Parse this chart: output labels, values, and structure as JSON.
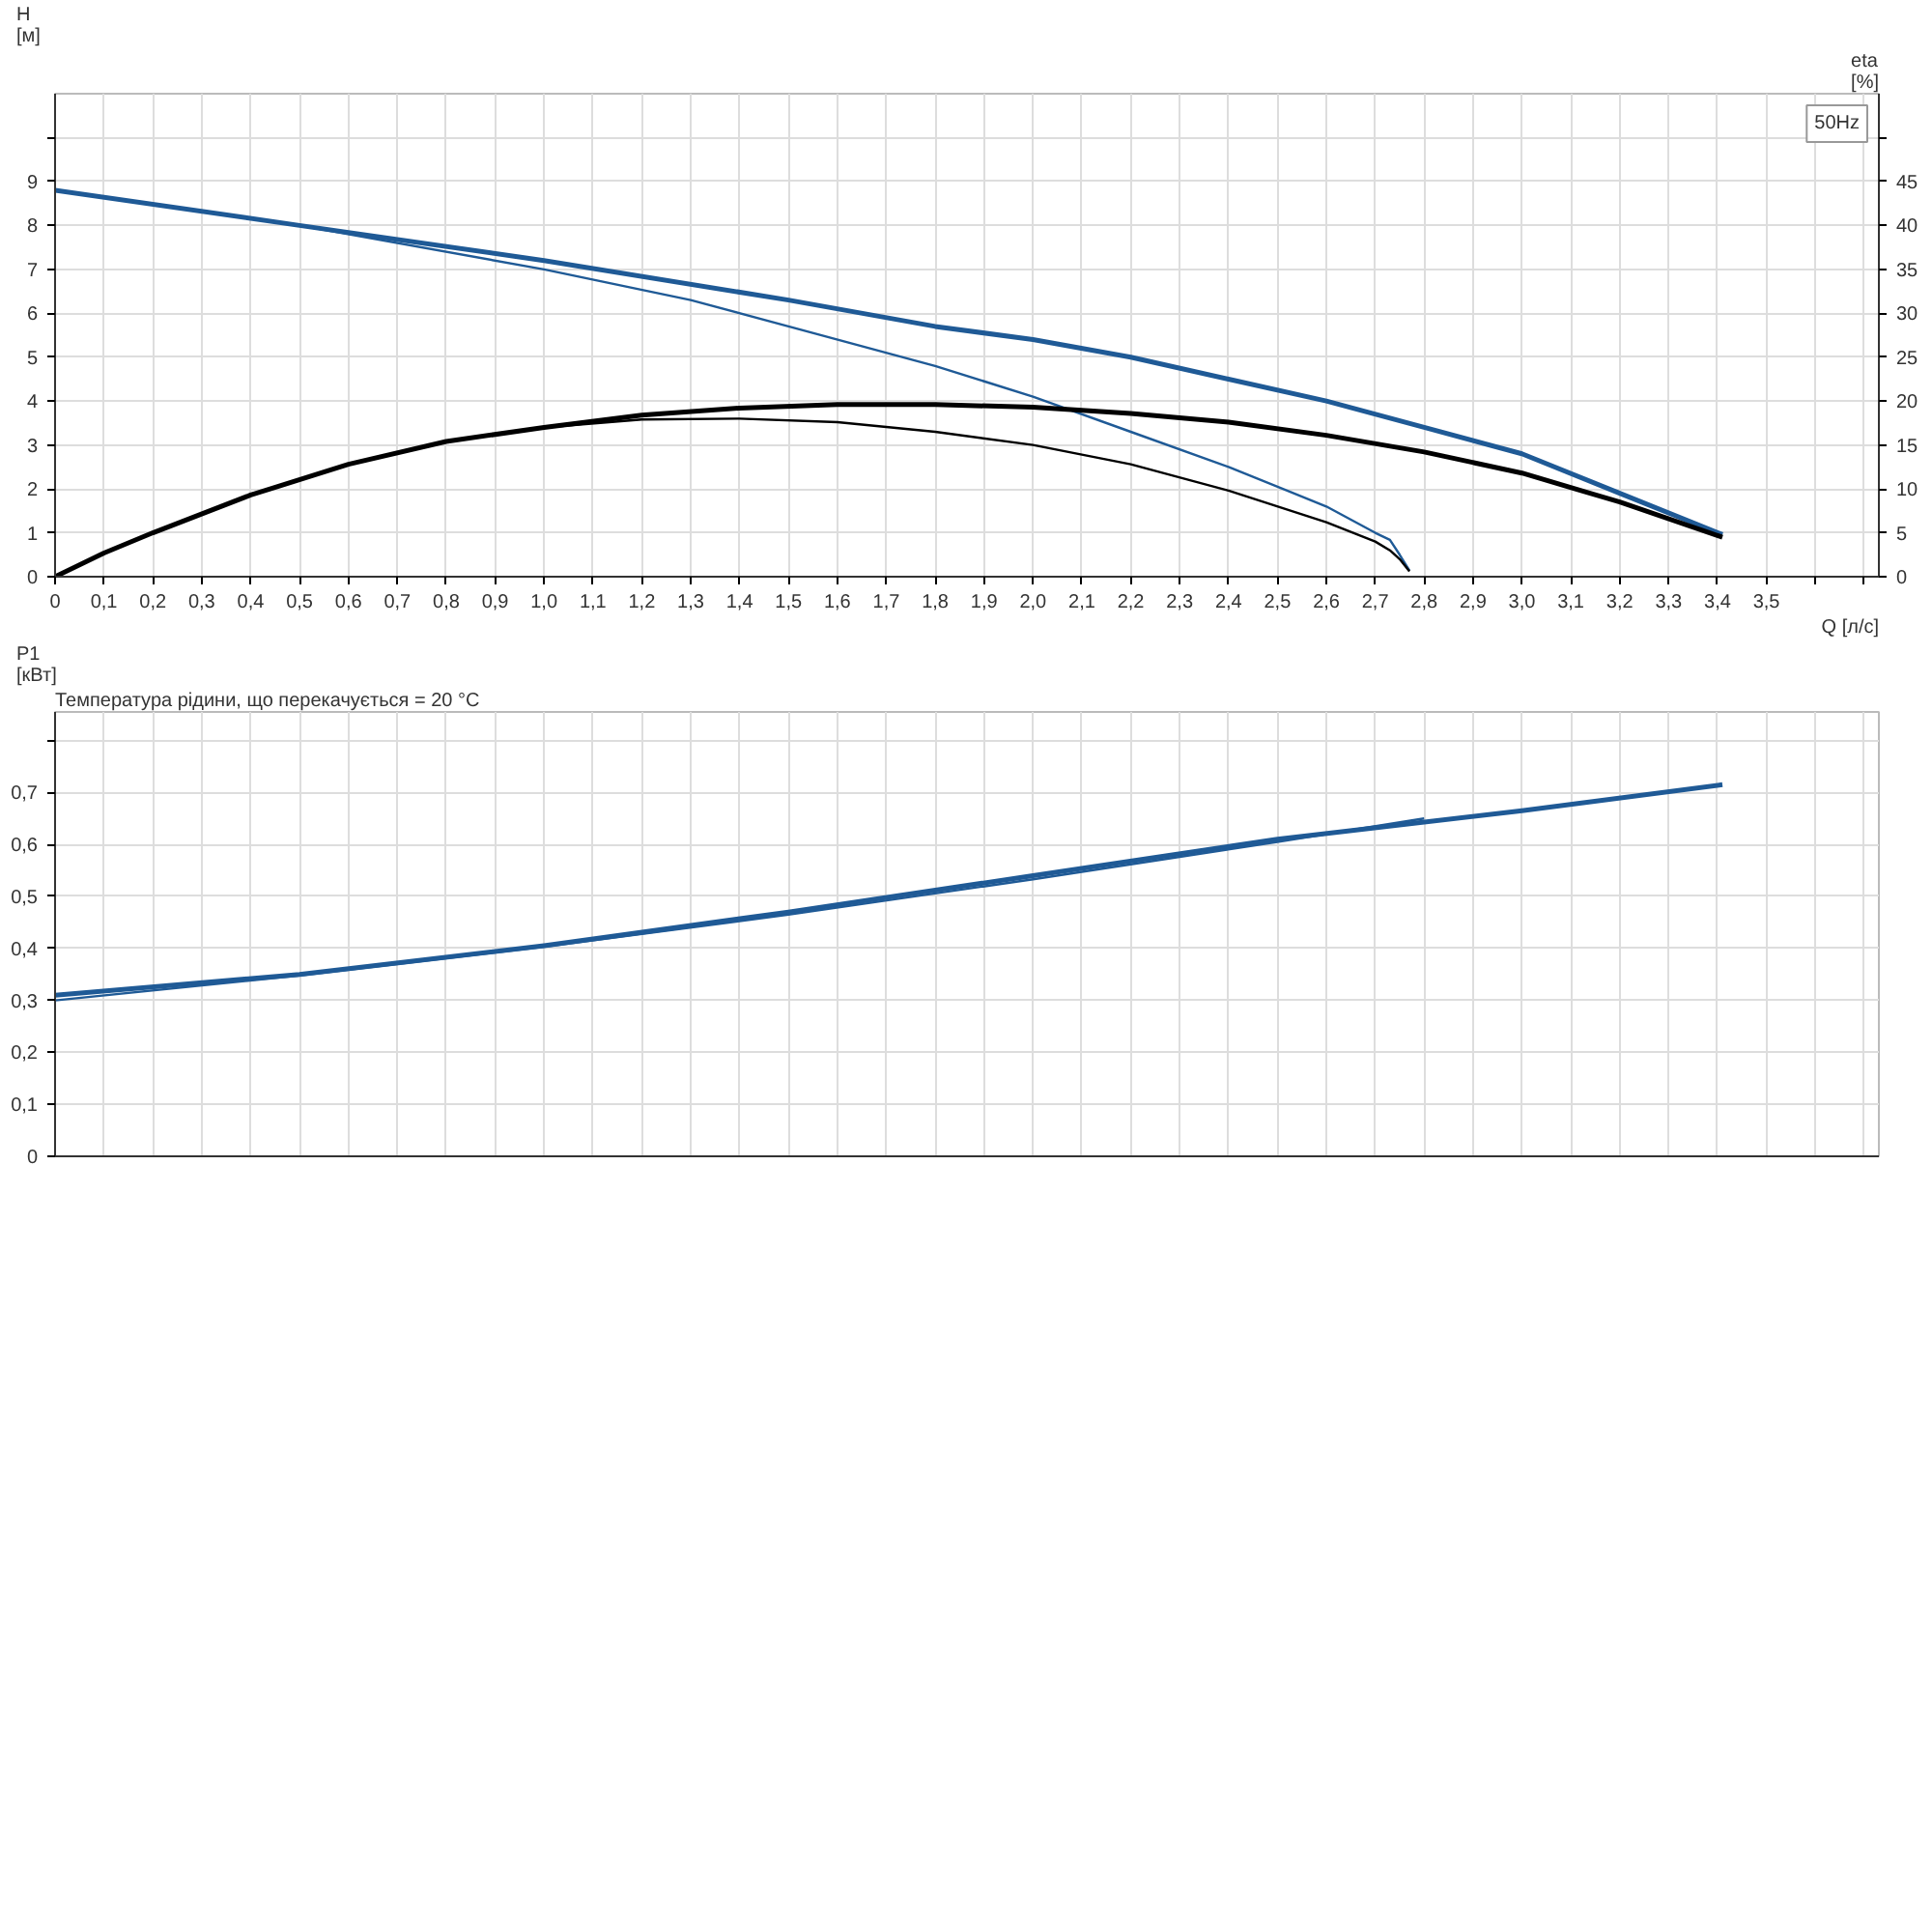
{
  "chart_data": [
    {
      "type": "line",
      "xlabel": "Q [л/с]",
      "ylabel": "H\n[м]",
      "y2label": "eta\n[%]",
      "annotations": [
        "50Hz"
      ],
      "xlim": [
        0,
        3.73
      ],
      "xticks": [
        0,
        {
          "value": 0.1,
          "label": "0,1"
        },
        {
          "value": 0.2,
          "label": "0,2"
        },
        {
          "value": 0.3,
          "label": "0,3"
        },
        {
          "value": 0.4,
          "label": "0,4"
        },
        {
          "value": 0.5,
          "label": "0,5"
        },
        {
          "value": 0.6,
          "label": "0,6"
        },
        {
          "value": 0.7,
          "label": "0,7"
        },
        {
          "value": 0.8,
          "label": "0,8"
        },
        {
          "value": 0.9,
          "label": "0,9"
        },
        {
          "value": 1.0,
          "label": "1,0"
        },
        {
          "value": 1.1,
          "label": "1,1"
        },
        {
          "value": 1.2,
          "label": "1,2"
        },
        {
          "value": 1.3,
          "label": "1,3"
        },
        {
          "value": 1.4,
          "label": "1,4"
        },
        {
          "value": 1.5,
          "label": "1,5"
        },
        {
          "value": 1.6,
          "label": "1,6"
        },
        {
          "value": 1.7,
          "label": "1,7"
        },
        {
          "value": 1.8,
          "label": "1,8"
        },
        {
          "value": 1.9,
          "label": "1,9"
        },
        {
          "value": 2.0,
          "label": "2,0"
        },
        {
          "value": 2.1,
          "label": "2,1"
        },
        {
          "value": 2.2,
          "label": "2,2"
        },
        {
          "value": 2.3,
          "label": "2,3"
        },
        {
          "value": 2.4,
          "label": "2,4"
        },
        {
          "value": 2.5,
          "label": "2,5"
        },
        {
          "value": 2.6,
          "label": "2,6"
        },
        {
          "value": 2.7,
          "label": "2,7"
        },
        {
          "value": 2.8,
          "label": "2,8"
        },
        {
          "value": 2.9,
          "label": "2,9"
        },
        {
          "value": 3.0,
          "label": "3,0"
        },
        {
          "value": 3.1,
          "label": "3,1"
        },
        {
          "value": 3.2,
          "label": "3,2"
        },
        {
          "value": 3.3,
          "label": "3,3"
        },
        {
          "value": 3.4,
          "label": "3,4"
        },
        {
          "value": 3.5,
          "label": "3,5"
        },
        {
          "value": 3.6,
          "label": null
        },
        {
          "value": 3.7,
          "label": null
        }
      ],
      "ylim": [
        0,
        11
      ],
      "yticks": [
        0,
        1,
        2,
        3,
        4,
        5,
        6,
        7,
        8,
        9,
        {
          "value": 10,
          "label": null
        }
      ],
      "y2lim": [
        0,
        55
      ],
      "y2ticks": [
        0,
        5,
        10,
        15,
        20,
        25,
        30,
        35,
        40,
        45,
        {
          "value": 50,
          "label": null
        }
      ],
      "grid": true,
      "series": [
        {
          "color": "#1f5a96",
          "x": [
            0,
            0.5,
            1.0,
            1.5,
            1.8,
            2.0,
            2.2,
            2.4,
            2.6,
            2.8,
            3.0,
            3.2,
            3.41
          ],
          "values": [
            8.8,
            8.0,
            7.2,
            6.3,
            5.7,
            5.4,
            5.0,
            4.5,
            4.0,
            3.4,
            2.8,
            1.9,
            0.96
          ]
        },
        {
          "color": "#1f5a96",
          "x": [
            0,
            0.5,
            1.0,
            1.3,
            1.5,
            1.8,
            2.0,
            2.2,
            2.4,
            2.6,
            2.7,
            2.73,
            2.75,
            2.77
          ],
          "values": [
            8.8,
            8.0,
            7.0,
            6.3,
            5.7,
            4.8,
            4.1,
            3.3,
            2.5,
            1.6,
            1.0,
            0.84,
            0.5,
            0.14
          ]
        },
        {
          "color": "#000000",
          "axis": "y2",
          "x": [
            0,
            0.1,
            0.2,
            0.4,
            0.6,
            0.8,
            1.0,
            1.2,
            1.4,
            1.6,
            1.8,
            2.0,
            2.2,
            2.4,
            2.6,
            2.8,
            3.0,
            3.2,
            3.41
          ],
          "values": [
            0,
            2.7,
            5,
            9.3,
            12.8,
            15.4,
            17,
            18.4,
            19.2,
            19.6,
            19.6,
            19.3,
            18.6,
            17.6,
            16.1,
            14.2,
            11.8,
            8.5,
            4.5
          ]
        },
        {
          "color": "#000000",
          "axis": "y2",
          "x": [
            0,
            0.1,
            0.2,
            0.4,
            0.6,
            0.8,
            1.0,
            1.2,
            1.4,
            1.6,
            1.8,
            2.0,
            2.2,
            2.4,
            2.6,
            2.7,
            2.73,
            2.75,
            2.77
          ],
          "values": [
            0,
            2.7,
            5,
            9.3,
            12.8,
            15.4,
            17,
            17.9,
            18,
            17.6,
            16.5,
            15,
            12.8,
            9.8,
            6.2,
            4.0,
            3.0,
            2.0,
            0.6
          ]
        }
      ]
    },
    {
      "type": "line",
      "ylabel": "P1\n[кВт]",
      "annotations": [
        "Температура рідини, що перекачується = 20 °C"
      ],
      "xlim": [
        0,
        3.73
      ],
      "xticks": [
        0,
        0.1,
        0.2,
        0.3,
        0.4,
        0.5,
        0.6,
        0.7,
        0.8,
        0.9,
        1.0,
        1.1,
        1.2,
        1.3,
        1.4,
        1.5,
        1.6,
        1.7,
        1.8,
        1.9,
        2.0,
        2.1,
        2.2,
        2.3,
        2.4,
        2.5,
        2.6,
        2.7,
        2.8,
        2.9,
        3.0,
        3.1,
        3.2,
        3.3,
        3.4,
        3.5,
        3.6,
        3.7
      ],
      "ylim": [
        0,
        0.855
      ],
      "yticks": [
        0,
        {
          "value": 0.1,
          "label": "0,1"
        },
        {
          "value": 0.2,
          "label": "0,2"
        },
        {
          "value": 0.3,
          "label": "0,3"
        },
        {
          "value": 0.4,
          "label": "0,4"
        },
        {
          "value": 0.5,
          "label": "0,5"
        },
        {
          "value": 0.6,
          "label": "0,6"
        },
        {
          "value": 0.7,
          "label": "0,7"
        },
        {
          "value": 0.8,
          "label": null
        }
      ],
      "tick_labels": "y",
      "grid": true,
      "series": [
        {
          "color": "#1f5a96",
          "x": [
            0,
            0.5,
            1.0,
            1.5,
            2.0,
            2.5,
            3.0,
            3.41
          ],
          "values": [
            0.31,
            0.35,
            0.405,
            0.47,
            0.54,
            0.61,
            0.665,
            0.715
          ]
        },
        {
          "color": "#1f5a96",
          "x": [
            0,
            0.5,
            1.0,
            1.5,
            2.0,
            2.5,
            2.8
          ],
          "values": [
            0.3,
            0.348,
            0.403,
            0.465,
            0.533,
            0.605,
            0.65
          ]
        }
      ]
    }
  ]
}
